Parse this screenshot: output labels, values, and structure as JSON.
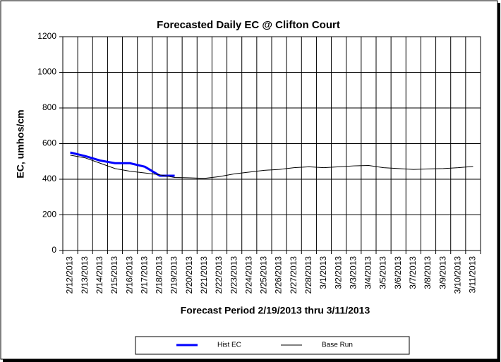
{
  "chart_data": {
    "type": "line",
    "title": "Forecasted Daily EC  @ Clifton Court",
    "x_label": "Forecast Period 2/19/2013 thru 3/11/2013",
    "y_label": "EC, umhos/cm",
    "categories": [
      "2/12/2013",
      "2/13/2013",
      "2/14/2013",
      "2/15/2013",
      "2/16/2013",
      "2/17/2013",
      "2/18/2013",
      "2/19/2013",
      "2/20/2013",
      "2/21/2013",
      "2/22/2013",
      "2/23/2013",
      "2/24/2013",
      "2/25/2013",
      "2/26/2013",
      "2/27/2013",
      "2/28/2013",
      "3/1/2013",
      "3/2/2013",
      "3/3/2013",
      "3/4/2013",
      "3/5/2013",
      "3/6/2013",
      "3/7/2013",
      "3/8/2013",
      "3/9/2013",
      "3/10/2013",
      "3/11/2013"
    ],
    "series": [
      {
        "name": "Hist EC",
        "color": "#0000ff",
        "values": [
          550,
          530,
          505,
          490,
          490,
          470,
          420,
          420,
          null,
          null,
          null,
          null,
          null,
          null,
          null,
          null,
          null,
          null,
          null,
          null,
          null,
          null,
          null,
          null,
          null,
          null,
          null,
          null
        ]
      },
      {
        "name": "Base Run",
        "color": "#000000",
        "values": [
          535,
          520,
          490,
          460,
          445,
          435,
          425,
          410,
          408,
          405,
          415,
          430,
          440,
          450,
          455,
          465,
          470,
          465,
          470,
          475,
          477,
          465,
          460,
          455,
          458,
          460,
          465,
          472
        ]
      }
    ],
    "ylim": [
      0,
      1200
    ],
    "yticks": [
      0,
      200,
      400,
      600,
      800,
      1000,
      1200
    ],
    "grid": true,
    "legend": "bottom"
  }
}
